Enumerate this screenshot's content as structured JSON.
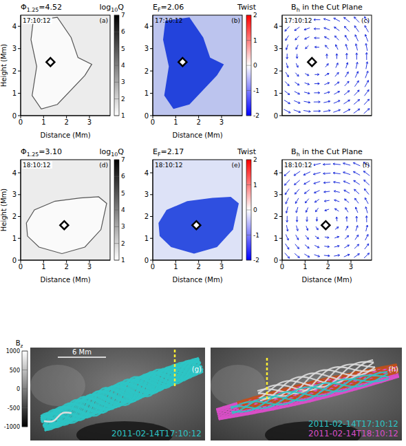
{
  "chart_data": [
    {
      "type": "map",
      "panel": "(a)",
      "time": "17:10:12",
      "title_left": [
        "Φ",
        "1.25",
        "=4.52"
      ],
      "title_right": [
        "log",
        "10",
        "Q"
      ],
      "xlabel": "Distance (Mm)",
      "ylabel": "Height (Mm)",
      "xlim": [
        0,
        3.9
      ],
      "ylim": [
        0,
        4.5
      ],
      "xticks": [
        0,
        1,
        2,
        3
      ],
      "yticks": [
        0,
        1,
        2,
        3,
        4
      ],
      "marker": "diamond",
      "points": [
        {
          "x": 1.3,
          "y": 2.4
        }
      ],
      "colorbar": {
        "range": [
          1,
          7
        ],
        "ticks": [
          1,
          2,
          3,
          4,
          5,
          6,
          7
        ],
        "colors": [
          "#ffffff",
          "#000000"
        ]
      }
    },
    {
      "type": "map",
      "panel": "(b)",
      "time": "17:10:12",
      "title_left": [
        "E",
        "F",
        "=2.06"
      ],
      "title_right": [
        "Twist"
      ],
      "xlabel": "Distance (Mm)",
      "xlim": [
        0,
        3.9
      ],
      "ylim": [
        0,
        4.5
      ],
      "xticks": [
        0,
        1,
        2,
        3
      ],
      "yticks": [
        0,
        1,
        2,
        3,
        4
      ],
      "marker": "diamond",
      "points": [
        {
          "x": 1.3,
          "y": 2.4
        }
      ],
      "colorbar": {
        "range": [
          -2,
          2
        ],
        "ticks": [
          -2,
          -1,
          0,
          1,
          2
        ],
        "colors": [
          "#0000ff",
          "#ffffff",
          "#ff0000"
        ]
      }
    },
    {
      "type": "vector_field",
      "panel": "(c)",
      "time": "17:10:12",
      "title_left": [
        "B",
        "h",
        " in the Cut Plane"
      ],
      "xlim": [
        0,
        3.9
      ],
      "ylim": [
        0,
        4.5
      ],
      "xticks": [
        0,
        1,
        2,
        3
      ],
      "yticks": [
        0,
        1,
        2,
        3,
        4
      ],
      "tick_labels": "y",
      "color": "#2233dd",
      "marker": "diamond",
      "points": [
        {
          "x": 1.3,
          "y": 2.4
        }
      ]
    },
    {
      "type": "map",
      "panel": "(d)",
      "time": "18:10:12",
      "title_left": [
        "Φ",
        "1.25",
        "=3.10"
      ],
      "title_right": [
        "log",
        "10",
        "Q"
      ],
      "xlabel": "Distance (Mm)",
      "ylabel": "Height (Mm)",
      "xlim": [
        0,
        3.9
      ],
      "ylim": [
        0,
        4.6
      ],
      "xticks": [
        0,
        1,
        2,
        3
      ],
      "yticks": [
        0,
        1,
        2,
        3,
        4
      ],
      "marker": "diamond",
      "points": [
        {
          "x": 1.9,
          "y": 1.6
        }
      ],
      "colorbar": {
        "range": [
          1,
          7
        ],
        "ticks": [
          1,
          2,
          3,
          4,
          5,
          6,
          7
        ],
        "colors": [
          "#ffffff",
          "#000000"
        ]
      }
    },
    {
      "type": "map",
      "panel": "(e)",
      "time": "18:10:12",
      "title_left": [
        "E",
        "F",
        "=2.17"
      ],
      "title_right": [
        "Twist"
      ],
      "xlabel": "Distance (Mm)",
      "xlim": [
        0,
        3.9
      ],
      "ylim": [
        0,
        4.6
      ],
      "xticks": [
        0,
        1,
        2,
        3
      ],
      "yticks": [
        0,
        1,
        2,
        3,
        4
      ],
      "marker": "diamond",
      "points": [
        {
          "x": 1.9,
          "y": 1.6
        }
      ],
      "colorbar": {
        "range": [
          -2,
          2
        ],
        "ticks": [
          -2,
          -1,
          0,
          1,
          2
        ],
        "colors": [
          "#0000ff",
          "#ffffff",
          "#ff0000"
        ]
      }
    },
    {
      "type": "vector_field",
      "panel": "(f)",
      "time": "18:10:12",
      "title_left": [
        "B",
        "h",
        " in the Cut Plane"
      ],
      "xlabel": "Distance (Mm)",
      "xlim": [
        0,
        3.9
      ],
      "ylim": [
        0,
        4.6
      ],
      "xticks": [
        0,
        1,
        2,
        3
      ],
      "yticks": [
        0,
        1,
        2,
        3,
        4
      ],
      "color": "#2233dd",
      "marker": "diamond",
      "points": [
        {
          "x": 1.9,
          "y": 1.6
        }
      ]
    },
    {
      "type": "rendering",
      "panel": "(g)",
      "scale_label": "6 Mm",
      "series": [
        {
          "name": "2011-02-14T17:10:12",
          "color": "#2ec4c4"
        }
      ],
      "colorbar": {
        "label": [
          "B",
          "z"
        ],
        "range": [
          -1000,
          1000
        ],
        "ticks": [
          1000,
          500,
          0,
          -500,
          -1000
        ],
        "colors": [
          "#000000",
          "#ffffff"
        ]
      }
    },
    {
      "type": "rendering",
      "panel": "(h)",
      "series": [
        {
          "name": "2011-02-14T17:10:12",
          "color": "#2ec4c4"
        },
        {
          "name": "2011-02-14T18:10:12",
          "color": "#d94fc8"
        }
      ]
    }
  ]
}
